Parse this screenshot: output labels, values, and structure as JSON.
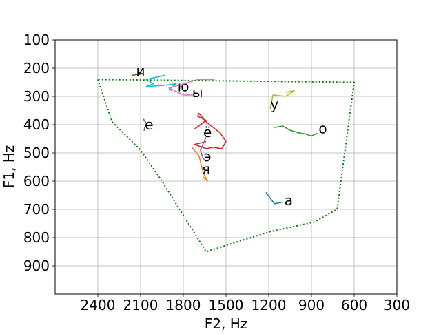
{
  "chart_data": {
    "type": "line",
    "title": "",
    "xlabel": "F2, Hz",
    "ylabel": "F1, Hz",
    "xlim": [
      2700,
      300
    ],
    "ylim": [
      1000,
      100
    ],
    "x_reversed": true,
    "y_reversed": true,
    "x_ticks": [
      2400,
      2100,
      1800,
      1500,
      1200,
      900,
      600,
      300
    ],
    "y_ticks": [
      100,
      200,
      300,
      400,
      500,
      600,
      700,
      800,
      900
    ],
    "grid": true,
    "legend": "none",
    "series": [
      {
        "label": "и",
        "label_pos": [
          2100,
          210
        ],
        "color": "#8c564b",
        "points": [
          [
            2160,
            225
          ],
          [
            2080,
            220
          ],
          [
            2120,
            215
          ]
        ]
      },
      {
        "label": "ю",
        "label_pos": [
          1800,
          265
        ],
        "color": "#17becf",
        "points": [
          [
            1930,
            225
          ],
          [
            2060,
            240
          ],
          [
            2010,
            255
          ],
          [
            2060,
            265
          ],
          [
            2040,
            265
          ],
          [
            1920,
            260
          ],
          [
            1850,
            255
          ],
          [
            1900,
            275
          ],
          [
            1880,
            280
          ]
        ]
      },
      {
        "label": "ы",
        "label_pos": [
          1700,
          285
        ],
        "color": "#e377c2",
        "points": [
          [
            1580,
            240
          ],
          [
            1700,
            240
          ],
          [
            1760,
            250
          ],
          [
            1900,
            270
          ],
          [
            1800,
            295
          ],
          [
            1720,
            295
          ]
        ]
      },
      {
        "label": "у",
        "label_pos": [
          1160,
          328
        ],
        "color": "#bcbd22",
        "points": [
          [
            1190,
            345
          ],
          [
            1170,
            295
          ],
          [
            1080,
            300
          ],
          [
            1020,
            280
          ],
          [
            1080,
            285
          ]
        ]
      },
      {
        "label": "е",
        "label_pos": [
          2040,
          400
        ],
        "color": "#8c564b",
        "points": [
          [
            2080,
            380
          ],
          [
            2060,
            395
          ],
          [
            2075,
            420
          ],
          [
            2070,
            408
          ]
        ]
      },
      {
        "label": "о",
        "label_pos": [
          820,
          413
        ],
        "color": "#2ca02c",
        "points": [
          [
            1160,
            410
          ],
          [
            1100,
            405
          ],
          [
            1050,
            420
          ],
          [
            980,
            430
          ],
          [
            950,
            432
          ],
          [
            900,
            440
          ],
          [
            860,
            430
          ]
        ]
      },
      {
        "label": "ё",
        "label_pos": [
          1630,
          427
        ],
        "color": "#d62728",
        "points": [
          [
            1720,
            415
          ],
          [
            1640,
            385
          ],
          [
            1700,
            370
          ],
          [
            1690,
            360
          ],
          [
            1640,
            390
          ],
          [
            1540,
            430
          ],
          [
            1500,
            460
          ],
          [
            1530,
            485
          ],
          [
            1590,
            480
          ],
          [
            1640,
            485
          ],
          [
            1720,
            470
          ],
          [
            1640,
            460
          ]
        ]
      },
      {
        "label": "э",
        "label_pos": [
          1630,
          512
        ],
        "color": "#9467bd",
        "points": [
          [
            1640,
            445
          ],
          [
            1680,
            490
          ],
          [
            1660,
            520
          ],
          [
            1640,
            530
          ]
        ]
      },
      {
        "label": "я",
        "label_pos": [
          1640,
          557
        ],
        "color": "#ff7f0e",
        "points": [
          [
            1740,
            480
          ],
          [
            1690,
            510
          ],
          [
            1660,
            570
          ],
          [
            1630,
            600
          ],
          [
            1660,
            585
          ]
        ]
      },
      {
        "label": "а",
        "label_pos": [
          1060,
          668
        ],
        "color": "#1f77b4",
        "points": [
          [
            1220,
            640
          ],
          [
            1160,
            680
          ],
          [
            1110,
            675
          ]
        ]
      },
      {
        "label": "",
        "label_pos": null,
        "color": "#008000",
        "dashed": true,
        "points": [
          [
            2400,
            240
          ],
          [
            2300,
            390
          ],
          [
            2100,
            490
          ],
          [
            1950,
            600
          ],
          [
            1640,
            850
          ],
          [
            1200,
            780
          ],
          [
            880,
            745
          ],
          [
            720,
            700
          ],
          [
            600,
            250
          ],
          [
            2400,
            240
          ]
        ]
      }
    ]
  }
}
